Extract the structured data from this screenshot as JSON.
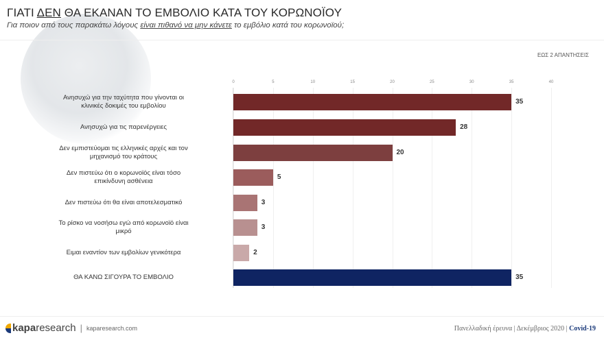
{
  "header": {
    "title_pre": "ΓΙΑΤΙ ",
    "title_underlined": "ΔΕΝ",
    "title_post": " ΘΑ ΕΚΑΝΑΝ ΤΟ ΕΜΒΟΛΙΟ ΚΑΤΑ ΤΟΥ ΚΟΡΩΝΟΪΟΥ",
    "subtitle_pre": "Για ποιον από τους παρακάτω λόγους ",
    "subtitle_underlined": "είναι πιθανό να μην κάνετε",
    "subtitle_post": " το εμβόλιο κατά του κορωνοϊού;",
    "note": "ΕΩΣ 2 ΑΠΑΝΤΗΣΕΙΣ"
  },
  "chart_data": {
    "type": "bar",
    "orientation": "horizontal",
    "categories": [
      "Ανησυχώ για την ταχύτητα που γίνονται οι κλινικές δοκιμές του εμβολίου",
      "Ανησυχώ για τις παρενέργειες",
      "Δεν εμπιστεύομαι τις ελληνικές αρχές και τον μηχανισμό του κράτους",
      "Δεν πιστεύω ότι ο κορωνοϊός είναι τόσο επικίνδυνη ασθένεια",
      "Δεν πιστεύω ότι θα είναι αποτελεσματικό",
      "Το ρίσκο να νοσήσω εγώ από κορωνοϊό είναι μικρό",
      "Ειμαι εναντίον των εμβολίων γενικότερα",
      "ΘΑ ΚΑΝΩ ΣΙΓΟΥΡΑ ΤΟ ΕΜΒΟΛΙΟ"
    ],
    "values": [
      35,
      28,
      20,
      5,
      3,
      3,
      2,
      35
    ],
    "data_labels": [
      "35",
      "28",
      "20",
      "5",
      "3",
      "3",
      "2",
      "35"
    ],
    "colors": [
      "#722828",
      "#722828",
      "#7d3f3f",
      "#9b5c5c",
      "#a97474",
      "#b89090",
      "#c9a9a9",
      "#0f2462"
    ],
    "xlim": [
      0,
      40
    ],
    "ticks": [
      "0",
      "5",
      "10",
      "15",
      "20",
      "25",
      "30",
      "35",
      "40"
    ],
    "grid": true
  },
  "footer": {
    "brand_bold": "kapa",
    "brand_rest": "research",
    "url": "kaparesearch.com",
    "survey": "Πανελλαδική έρευνα | Δεκέμβριος 2020 | ",
    "topic": "Covid-19"
  }
}
